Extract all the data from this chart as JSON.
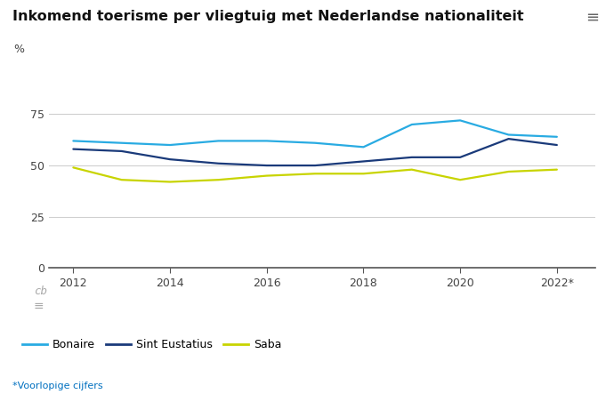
{
  "title": "Inkomend toerisme per vliegtuig met Nederlandse nationaliteit",
  "ylabel": "%",
  "years": [
    2012,
    2013,
    2014,
    2015,
    2016,
    2017,
    2018,
    2019,
    2020,
    2021,
    2022
  ],
  "bonaire": [
    62,
    61,
    60,
    62,
    62,
    61,
    59,
    70,
    72,
    65,
    64
  ],
  "sint_eustatius": [
    58,
    57,
    53,
    51,
    50,
    50,
    52,
    54,
    54,
    63,
    60
  ],
  "saba": [
    49,
    43,
    42,
    43,
    45,
    46,
    46,
    48,
    43,
    47,
    48
  ],
  "bonaire_color": "#29ABE2",
  "sint_eustatius_color": "#1a3a7a",
  "saba_color": "#c8d400",
  "grid_color": "#d0d0d0",
  "footer_color": "#e0e0e0",
  "ylim": [
    0,
    100
  ],
  "yticks": [
    0,
    25,
    50,
    75
  ],
  "xtick_labels": [
    "2012",
    "2014",
    "2016",
    "2018",
    "2020",
    "2022*"
  ],
  "footnote": "*Voorlopige cijfers",
  "legend_labels": [
    "Bonaire",
    "Sint Eustatius",
    "Saba"
  ]
}
